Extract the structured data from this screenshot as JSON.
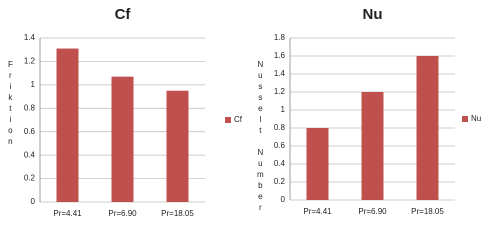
{
  "chart_data": [
    {
      "type": "bar",
      "title": "Cf",
      "y_label": "Friktion",
      "categories": [
        "Pr=4.41",
        "Pr=6.90",
        "Pr=18.05"
      ],
      "series": [
        {
          "name": "Cf",
          "color": "#c0504d",
          "values": [
            1.31,
            1.07,
            0.95
          ]
        }
      ],
      "ylim": [
        0,
        1.4
      ],
      "yticks": [
        0,
        0.2,
        0.4,
        0.6,
        0.8,
        1,
        1.2,
        1.4
      ],
      "grid": true,
      "legend": "right"
    },
    {
      "type": "bar",
      "title": "Nu",
      "y_label": "Nusselt Number",
      "categories": [
        "Pr=4.41",
        "Pr=6.90",
        "Pr=18.05"
      ],
      "series": [
        {
          "name": "Nu",
          "color": "#c0504d",
          "values": [
            0.8,
            1.2,
            1.6
          ]
        }
      ],
      "ylim": [
        0,
        1.8
      ],
      "yticks": [
        0,
        0.2,
        0.4,
        0.6,
        0.8,
        1,
        1.2,
        1.4,
        1.6,
        1.8
      ],
      "grid": true,
      "legend": "right"
    }
  ]
}
